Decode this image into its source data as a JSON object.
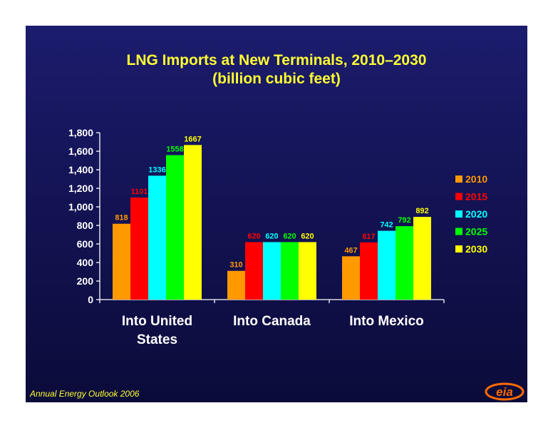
{
  "slide": {
    "title_line1": "LNG Imports at New Terminals, 2010–2030",
    "title_line2": "(billion cubic feet)",
    "footer": "Annual Energy Outlook 2006",
    "logo_text": "eia",
    "colors": {
      "background": "#15155a",
      "title": "#ffff33",
      "axis": "#ffffff"
    }
  },
  "chart_data": {
    "type": "bar",
    "title": "LNG Imports at New Terminals, 2010–2030",
    "subtitle": "(billion cubic feet)",
    "categories": [
      "Into United States",
      "Into Canada",
      "Into Mexico"
    ],
    "category_lines": [
      [
        "Into United",
        "States"
      ],
      [
        "Into Canada"
      ],
      [
        "Into Mexico"
      ]
    ],
    "series": [
      {
        "name": "2010",
        "color": "#ff9900",
        "values": [
          818,
          310,
          467
        ]
      },
      {
        "name": "2015",
        "color": "#ff0000",
        "values": [
          1101,
          620,
          617
        ]
      },
      {
        "name": "2020",
        "color": "#00ffff",
        "values": [
          1336,
          620,
          742
        ]
      },
      {
        "name": "2025",
        "color": "#00ff00",
        "values": [
          1558,
          620,
          792
        ]
      },
      {
        "name": "2030",
        "color": "#ffff00",
        "values": [
          1667,
          620,
          892
        ]
      }
    ],
    "data_labels": [
      [
        "818",
        "310",
        "467"
      ],
      [
        "1101",
        "620",
        "617"
      ],
      [
        "1336",
        "620",
        "742"
      ],
      [
        "1558",
        "620",
        "792"
      ],
      [
        "1667",
        "620",
        "892"
      ]
    ],
    "ylim": [
      0,
      1800
    ],
    "yticks": [
      0,
      200,
      400,
      600,
      800,
      1000,
      1200,
      1400,
      1600,
      1800
    ],
    "ytick_labels": [
      "0",
      "200",
      "400",
      "600",
      "800",
      "1,000",
      "1,200",
      "1,400",
      "1,600",
      "1,800"
    ],
    "xlabel": "",
    "ylabel": "",
    "legend_position": "right",
    "grid": false
  }
}
